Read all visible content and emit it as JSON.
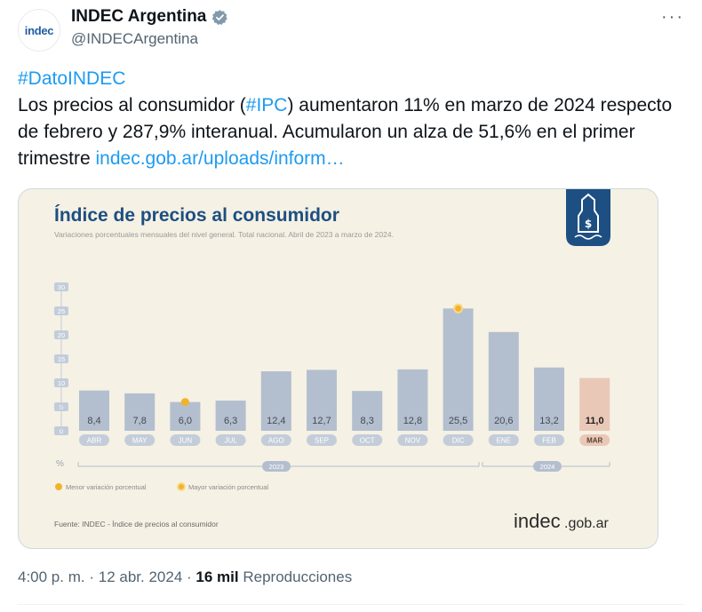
{
  "account": {
    "display_name": "INDEC Argentina",
    "handle": "@INDECArgentina",
    "avatar_text": "indec",
    "verified_color": "#829aab"
  },
  "tweet": {
    "hashtag_line": "#DatoINDEC",
    "text_part1": "Los precios al consumidor (",
    "hashtag_ipc": "#IPC",
    "text_part2": ") aumentaron 11% en marzo de 2024 respecto de febrero y 287,9% interanual. Acumularon un alza de 51,6% en el primer trimestre ",
    "link_text": "indec.gob.ar/uploads/inform…"
  },
  "chart": {
    "title": "Índice de precios al consumidor",
    "subtitle": "Variaciones porcentuales mensuales del nivel general. Total nacional. Abril de 2023 a marzo de 2024.",
    "unit_label": "%",
    "year_2023": "2023",
    "year_2024": "2024",
    "legend_min": "Menor variación porcentual",
    "legend_max": "Mayor variación porcentual",
    "source": "Fuente: INDEC - Índice de precios al consumidor",
    "brand_main": "indec",
    "brand_suffix": ".gob.ar",
    "colors": {
      "bar": "#b3bfcf",
      "highlight_bar": "#e9c8b7",
      "title": "#1d4f82",
      "marker": "#f0b429",
      "background": "#f5f1e4"
    }
  },
  "chart_data": {
    "type": "bar",
    "title": "Índice de precios al consumidor",
    "categories": [
      "ABR",
      "MAY",
      "JUN",
      "JUL",
      "AGO",
      "SEP",
      "OCT",
      "NOV",
      "DIC",
      "ENE",
      "FEB",
      "MAR"
    ],
    "values": [
      8.4,
      7.8,
      6.0,
      6.3,
      12.4,
      12.7,
      8.3,
      12.8,
      25.5,
      20.6,
      13.2,
      11.0
    ],
    "value_labels": [
      "8,4",
      "7,8",
      "6,0",
      "6,3",
      "12,4",
      "12,7",
      "8,3",
      "12,8",
      "25,5",
      "20,6",
      "13,2",
      "11,0"
    ],
    "ylim": [
      0,
      30
    ],
    "yticks": [
      0,
      5,
      10,
      15,
      20,
      25,
      30
    ],
    "min_marker_index": 2,
    "max_marker_index": 8,
    "highlight_index": 11,
    "grid": false
  },
  "meta": {
    "time": "4:00 p. m.",
    "date": "12 abr. 2024",
    "views_count": "16 mil",
    "views_label": "Reproducciones",
    "separator": "·"
  }
}
